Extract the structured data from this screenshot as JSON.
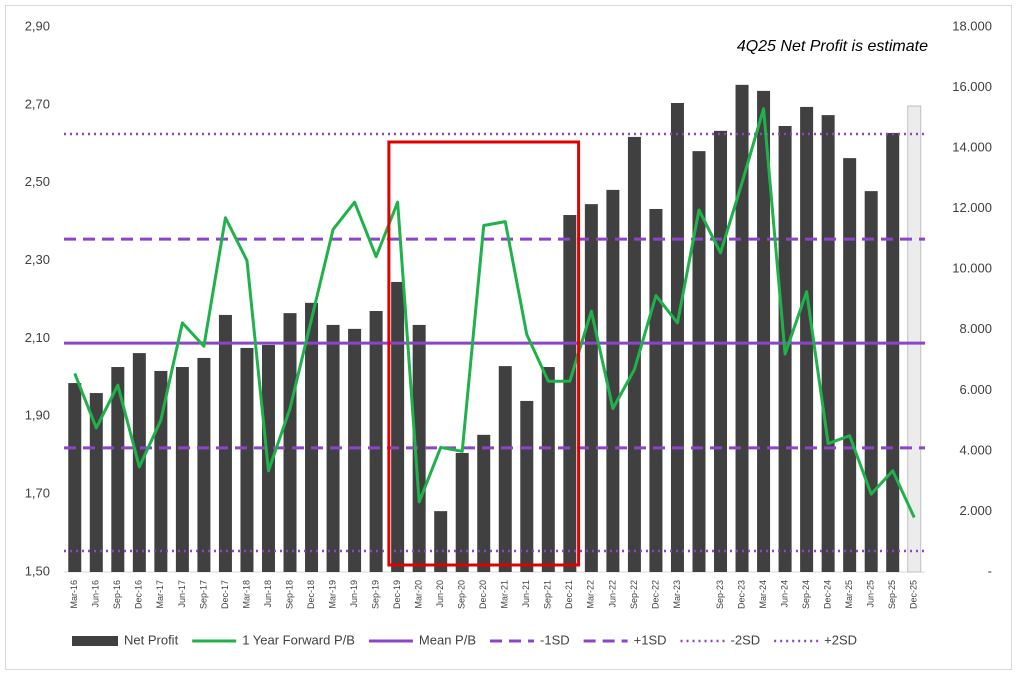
{
  "chart_data": {
    "type": "bar_line",
    "annotation": "4Q25 Net Profit is estimate",
    "categories": [
      "Mar-16",
      "Jun-16",
      "Sep-16",
      "Dec-16",
      "Mar-17",
      "Jun-17",
      "Sep-17",
      "Dec-17",
      "Mar-18",
      "Jun-18",
      "Sep-18",
      "Dec-18",
      "Mar-19",
      "Jun-19",
      "Sep-19",
      "Dec-19",
      "Mar-20",
      "Jun-20",
      "Sep-20",
      "Dec-20",
      "Mar-21",
      "Jun-21",
      "Sep-21",
      "Dec-21",
      "Mar-22",
      "Jun-22",
      "Sep-22",
      "Dec-22",
      "Mar-23",
      null,
      "Sep-23",
      "Dec-23",
      "Mar-24",
      "Jun-24",
      "Sep-24",
      "Dec-24",
      "Mar-25",
      "Jun-25",
      "Sep-25",
      "Dec-25"
    ],
    "ylim": [
      1.5,
      2.9
    ],
    "yticks": [
      {
        "value": 1.5,
        "label": "1,50"
      },
      {
        "value": 1.7,
        "label": "1,70"
      },
      {
        "value": 1.9,
        "label": "1,90"
      },
      {
        "value": 2.1,
        "label": "2,10"
      },
      {
        "value": 2.3,
        "label": "2,30"
      },
      {
        "value": 2.5,
        "label": "2,50"
      },
      {
        "value": 2.7,
        "label": "2,70"
      },
      {
        "value": 2.9,
        "label": "2,90"
      }
    ],
    "y2lim": [
      0,
      18000
    ],
    "y2ticks": [
      {
        "value": 0,
        "label": "-"
      },
      {
        "value": 2000,
        "label": "2.000"
      },
      {
        "value": 4000,
        "label": "4.000"
      },
      {
        "value": 6000,
        "label": "6.000"
      },
      {
        "value": 8000,
        "label": "8.000"
      },
      {
        "value": 10000,
        "label": "10.000"
      },
      {
        "value": 12000,
        "label": "12.000"
      },
      {
        "value": 14000,
        "label": "14.000"
      },
      {
        "value": 16000,
        "label": "16.000"
      },
      {
        "value": 18000,
        "label": "18.000"
      }
    ],
    "highlight": {
      "start": 15,
      "end": 23,
      "color": "#e00000"
    },
    "series": [
      {
        "name": "Net Profit",
        "type": "bar",
        "axis": "y2",
        "color": "#404040",
        "estimate_color": "#ececec",
        "estimate_index": 39,
        "values": [
          6240,
          5910,
          6770,
          7230,
          6640,
          6770,
          7070,
          8490,
          7400,
          7500,
          8550,
          8890,
          8160,
          8030,
          8620,
          9580,
          8160,
          2010,
          3930,
          4530,
          6800,
          5650,
          6770,
          11790,
          12150,
          12620,
          14370,
          11990,
          15490,
          13900,
          14570,
          16090,
          15890,
          14730,
          15360,
          15090,
          13670,
          12580,
          14500,
          15390
        ]
      },
      {
        "name": "1 Year Forward P/B",
        "type": "line",
        "color": "#1fb24a",
        "values": [
          2.01,
          1.87,
          1.98,
          1.77,
          1.89,
          2.14,
          2.08,
          2.41,
          2.3,
          1.76,
          1.92,
          2.15,
          2.38,
          2.45,
          2.31,
          2.45,
          1.68,
          1.82,
          1.81,
          2.39,
          2.4,
          2.11,
          1.99,
          1.99,
          2.17,
          1.92,
          2.02,
          2.21,
          2.14,
          2.43,
          2.32,
          2.5,
          2.69,
          2.06,
          2.22,
          1.83,
          1.85,
          1.7,
          1.76,
          1.64
        ]
      },
      {
        "name": "Mean P/B",
        "type": "level",
        "style": "solid",
        "color": "#8e44c8",
        "value": 2.088
      },
      {
        "name": "-1SD",
        "type": "level",
        "style": "dash",
        "color": "#8e44c8",
        "value": 1.819
      },
      {
        "name": "+1SD",
        "type": "level",
        "style": "dash",
        "color": "#8e44c8",
        "value": 2.355
      },
      {
        "name": "-2SD",
        "type": "level",
        "style": "dot",
        "color": "#8e44c8",
        "value": 1.554
      },
      {
        "name": "+2SD",
        "type": "level",
        "style": "dot",
        "color": "#8e44c8",
        "value": 2.625
      }
    ]
  }
}
